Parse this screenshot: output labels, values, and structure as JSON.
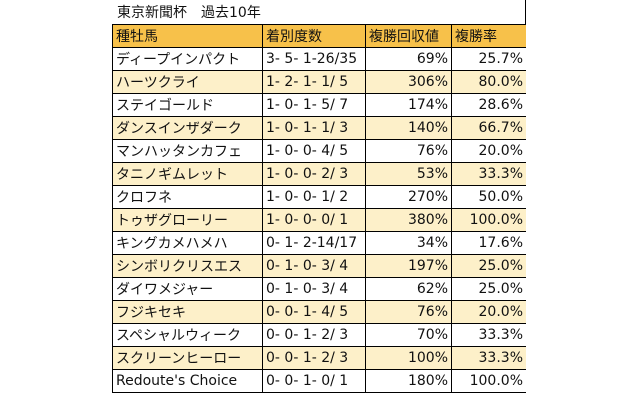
{
  "title": "東京新聞杯　過去10年",
  "columns": [
    "種牡馬",
    "着別度数",
    "複勝回収値",
    "複勝率"
  ],
  "rows": [
    {
      "sire": "ディープインパクト",
      "record": "3- 5- 1-26/35",
      "return": "69%",
      "rate": "25.7%"
    },
    {
      "sire": "ハーツクライ",
      "record": "1- 2- 1- 1/ 5",
      "return": "306%",
      "rate": "80.0%"
    },
    {
      "sire": "ステイゴールド",
      "record": "1- 0- 1- 5/ 7",
      "return": "174%",
      "rate": "28.6%"
    },
    {
      "sire": "ダンスインザダーク",
      "record": "1- 0- 1- 1/ 3",
      "return": "140%",
      "rate": "66.7%"
    },
    {
      "sire": "マンハッタンカフェ",
      "record": "1- 0- 0- 4/ 5",
      "return": "76%",
      "rate": "20.0%"
    },
    {
      "sire": "タニノギムレット",
      "record": "1- 0- 0- 2/ 3",
      "return": "53%",
      "rate": "33.3%"
    },
    {
      "sire": "クロフネ",
      "record": "1- 0- 0- 1/ 2",
      "return": "270%",
      "rate": "50.0%"
    },
    {
      "sire": "トゥザグローリー",
      "record": "1- 0- 0- 0/ 1",
      "return": "380%",
      "rate": "100.0%"
    },
    {
      "sire": "キングカメハメハ",
      "record": "0- 1- 2-14/17",
      "return": "34%",
      "rate": "17.6%"
    },
    {
      "sire": "シンボリクリスエス",
      "record": "0- 1- 0- 3/ 4",
      "return": "197%",
      "rate": "25.0%"
    },
    {
      "sire": "ダイワメジャー",
      "record": "0- 1- 0- 3/ 4",
      "return": "62%",
      "rate": "25.0%"
    },
    {
      "sire": "フジキセキ",
      "record": "0- 0- 1- 4/ 5",
      "return": "76%",
      "rate": "20.0%"
    },
    {
      "sire": "スペシャルウィーク",
      "record": "0- 0- 1- 2/ 3",
      "return": "70%",
      "rate": "33.3%"
    },
    {
      "sire": "スクリーンヒーロー",
      "record": "0- 0- 1- 2/ 3",
      "return": "100%",
      "rate": "33.3%"
    },
    {
      "sire": "Redoute's Choice",
      "record": "0- 0- 1- 0/ 1",
      "return": "180%",
      "rate": "100.0%"
    }
  ],
  "colors": {
    "header": "#f7c14a",
    "alt_row": "#fdf0c9",
    "row": "#ffffff"
  }
}
